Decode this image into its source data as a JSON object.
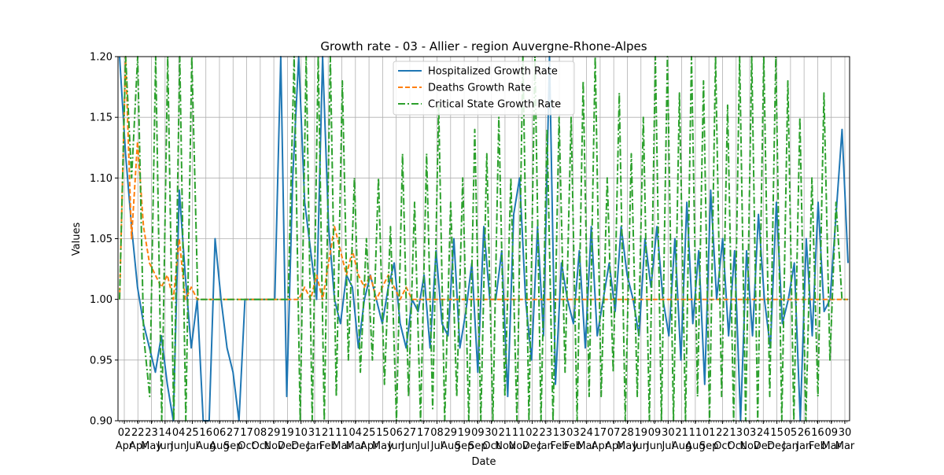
{
  "chart_data": {
    "type": "line",
    "title": "Growth rate - 03 - Allier - region Auvergne-Rhone-Alpes",
    "xlabel": "Date",
    "ylabel": "Values",
    "ylim": [
      0.9,
      1.2
    ],
    "yticks": [
      "0.90",
      "0.95",
      "1.00",
      "1.05",
      "1.10",
      "1.15",
      "1.20"
    ],
    "xticks": [
      {
        "day": "02",
        "month": "Apr"
      },
      {
        "day": "22",
        "month": "Apr"
      },
      {
        "day": "23",
        "month": "May"
      },
      {
        "day": "14",
        "month": "Jun"
      },
      {
        "day": "04",
        "month": "Jun"
      },
      {
        "day": "25",
        "month": "Jul"
      },
      {
        "day": "16",
        "month": "Aug"
      },
      {
        "day": "06",
        "month": "Aug"
      },
      {
        "day": "27",
        "month": "Sep"
      },
      {
        "day": "17",
        "month": "Oct"
      },
      {
        "day": "08",
        "month": "Oct"
      },
      {
        "day": "29",
        "month": "Nov"
      },
      {
        "day": "19",
        "month": "Dec"
      },
      {
        "day": "10",
        "month": "Dec"
      },
      {
        "day": "31",
        "month": "Jan"
      },
      {
        "day": "21",
        "month": "Feb"
      },
      {
        "day": "11",
        "month": "Mar"
      },
      {
        "day": "04",
        "month": "Mar"
      },
      {
        "day": "25",
        "month": "Apr"
      },
      {
        "day": "15",
        "month": "May"
      },
      {
        "day": "06",
        "month": "Jun"
      },
      {
        "day": "27",
        "month": "Jun"
      },
      {
        "day": "17",
        "month": "Jul"
      },
      {
        "day": "08",
        "month": "Jul"
      },
      {
        "day": "29",
        "month": "Aug"
      },
      {
        "day": "19",
        "month": "Sep"
      },
      {
        "day": "09",
        "month": "Sep"
      },
      {
        "day": "30",
        "month": "Oct"
      },
      {
        "day": "21",
        "month": "Nov"
      },
      {
        "day": "11",
        "month": "Nov"
      },
      {
        "day": "02",
        "month": "Dec"
      },
      {
        "day": "23",
        "month": "Jan"
      },
      {
        "day": "13",
        "month": "Feb"
      },
      {
        "day": "03",
        "month": "Feb"
      },
      {
        "day": "24",
        "month": "Mar"
      },
      {
        "day": "17",
        "month": "Apr"
      },
      {
        "day": "07",
        "month": "Apr"
      },
      {
        "day": "28",
        "month": "May"
      },
      {
        "day": "19",
        "month": "Jun"
      },
      {
        "day": "09",
        "month": "Jun"
      },
      {
        "day": "30",
        "month": "Jul"
      },
      {
        "day": "21",
        "month": "Aug"
      },
      {
        "day": "11",
        "month": "Aug"
      },
      {
        "day": "01",
        "month": "Sep"
      },
      {
        "day": "22",
        "month": "Oct"
      },
      {
        "day": "13",
        "month": "Oct"
      },
      {
        "day": "03",
        "month": "Nov"
      },
      {
        "day": "24",
        "month": "Dec"
      },
      {
        "day": "15",
        "month": "Dec"
      },
      {
        "day": "05",
        "month": "Jan"
      },
      {
        "day": "26",
        "month": "Jan"
      },
      {
        "day": "16",
        "month": "Feb"
      },
      {
        "day": "09",
        "month": "Mar"
      },
      {
        "day": "30",
        "month": "Mar"
      }
    ],
    "legend_position": "upper center",
    "series": [
      {
        "name": "Hospitalized Growth Rate",
        "color": "#1f77b4",
        "style": "solid",
        "values": [
          1.2,
          1.12,
          1.06,
          1.01,
          0.98,
          0.96,
          0.94,
          0.97,
          0.93,
          0.9,
          1.09,
          1.02,
          0.96,
          1.0,
          0.9,
          0.9,
          1.05,
          1.0,
          0.96,
          0.94,
          0.9,
          1.0,
          1.0,
          1.0,
          1.0,
          1.0,
          1.0,
          1.2,
          0.92,
          1.1,
          1.2,
          1.08,
          1.04,
          1.0,
          1.2,
          1.06,
          1.0,
          0.98,
          1.02,
          1.01,
          0.96,
          1.0,
          1.02,
          1.0,
          0.98,
          1.01,
          1.03,
          0.98,
          0.96,
          1.0,
          0.99,
          1.02,
          0.96,
          1.04,
          0.98,
          0.97,
          1.05,
          0.96,
          0.99,
          1.03,
          0.94,
          1.06,
          1.0,
          1.0,
          1.04,
          0.92,
          1.07,
          1.1,
          1.0,
          0.95,
          1.06,
          0.97,
          1.2,
          0.93,
          1.03,
          1.0,
          0.98,
          1.04,
          0.96,
          1.06,
          0.97,
          1.0,
          1.03,
          0.99,
          1.06,
          1.02,
          1.0,
          0.97,
          1.05,
          1.01,
          1.06,
          1.0,
          0.97,
          1.05,
          0.95,
          1.08,
          0.98,
          1.04,
          0.93,
          1.09,
          1.0,
          1.05,
          0.97,
          1.04,
          0.9,
          1.04,
          0.97,
          1.07,
          1.0,
          0.96,
          1.08,
          0.98,
          1.0,
          1.03,
          0.9,
          1.05,
          0.97,
          1.08,
          0.99,
          1.0,
          1.07,
          1.14,
          1.03
        ]
      },
      {
        "name": "Deaths Growth Rate",
        "color": "#ff7f0e",
        "style": "dashed",
        "values": [
          1.0,
          1.2,
          1.05,
          1.13,
          1.06,
          1.03,
          1.02,
          1.01,
          1.02,
          1.0,
          1.05,
          1.0,
          1.01,
          1.0,
          1.0,
          1.0,
          1.0,
          1.0,
          1.0,
          1.0,
          1.0,
          1.0,
          1.0,
          1.0,
          1.0,
          1.0,
          1.0,
          1.0,
          1.0,
          1.0,
          1.0,
          1.01,
          1.0,
          1.02,
          1.0,
          1.03,
          1.06,
          1.04,
          1.02,
          1.04,
          1.02,
          1.01,
          1.02,
          1.0,
          1.01,
          1.02,
          1.01,
          1.0,
          1.01,
          1.0,
          1.0,
          1.0,
          1.0,
          1.0,
          1.0,
          1.0,
          1.0,
          1.0,
          1.0,
          1.0,
          1.0,
          1.0,
          1.0,
          1.0,
          1.0,
          1.0,
          1.0,
          1.0,
          1.0,
          1.0,
          1.0,
          1.0,
          1.0,
          1.0,
          1.0,
          1.0,
          1.0,
          1.0,
          1.0,
          1.0,
          1.0,
          1.0,
          1.0,
          1.0,
          1.0,
          1.0,
          1.0,
          1.0,
          1.0,
          1.0,
          1.0,
          1.0,
          1.0,
          1.0,
          1.0,
          1.0,
          1.0,
          1.0,
          1.0,
          1.0,
          1.0,
          1.0,
          1.0,
          1.0,
          1.0,
          1.0,
          1.0,
          1.0,
          1.0,
          1.0,
          1.0,
          1.0,
          1.0,
          1.0,
          1.0,
          1.0,
          1.0,
          1.0,
          1.0,
          1.0,
          1.0,
          1.0,
          1.0
        ]
      },
      {
        "name": "Critical State Growth Rate",
        "color": "#2ca02c",
        "style": "dashdot",
        "values": [
          1.0,
          1.2,
          1.1,
          1.2,
          0.97,
          0.92,
          1.2,
          0.9,
          1.2,
          0.9,
          1.2,
          0.9,
          1.2,
          1.0,
          1.0,
          1.0,
          1.0,
          1.0,
          1.0,
          1.0,
          1.0,
          1.0,
          1.0,
          1.0,
          1.0,
          1.0,
          1.0,
          1.0,
          1.0,
          1.2,
          0.9,
          1.2,
          0.9,
          1.2,
          0.9,
          1.2,
          0.92,
          1.18,
          0.95,
          1.1,
          0.94,
          1.05,
          0.95,
          1.1,
          0.93,
          1.06,
          0.9,
          1.12,
          0.92,
          1.08,
          0.9,
          1.12,
          0.91,
          1.16,
          0.9,
          1.08,
          0.92,
          1.1,
          0.9,
          1.14,
          0.9,
          1.12,
          0.9,
          1.15,
          0.92,
          1.1,
          0.9,
          1.2,
          0.9,
          1.2,
          0.9,
          1.14,
          0.9,
          1.15,
          0.94,
          1.15,
          0.9,
          1.18,
          0.92,
          1.2,
          0.92,
          1.1,
          0.94,
          1.17,
          0.9,
          1.12,
          0.92,
          1.15,
          0.9,
          1.2,
          0.9,
          1.2,
          0.9,
          1.17,
          0.9,
          1.2,
          0.92,
          1.18,
          0.9,
          1.2,
          0.92,
          1.16,
          0.9,
          1.2,
          0.9,
          1.2,
          0.9,
          1.2,
          0.92,
          1.2,
          0.9,
          1.18,
          0.9,
          1.15,
          0.9,
          1.1,
          0.92,
          1.17,
          0.95,
          1.08,
          1.0,
          1.0
        ]
      }
    ]
  }
}
